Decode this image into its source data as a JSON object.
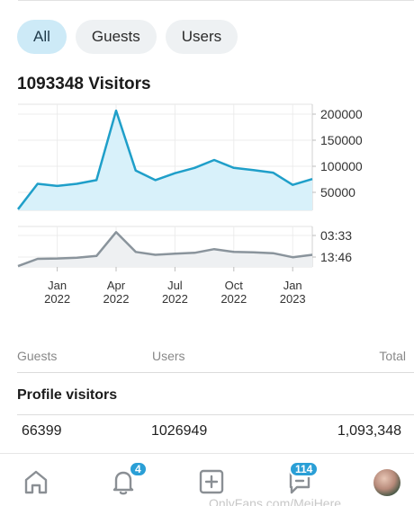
{
  "tabs": [
    {
      "label": "All",
      "active": true
    },
    {
      "label": "Guests",
      "active": false
    },
    {
      "label": "Users",
      "active": false
    }
  ],
  "title": "1093348 Visitors",
  "chart_data": [
    {
      "type": "area",
      "x": [
        "2021-11",
        "2021-12",
        "2022-01",
        "2022-02",
        "2022-03",
        "2022-04",
        "2022-05",
        "2022-06",
        "2022-07",
        "2022-08",
        "2022-09",
        "2022-10",
        "2022-11",
        "2022-12",
        "2023-01",
        "2023-02"
      ],
      "series": [
        {
          "values": [
            2000,
            50000,
            46000,
            50000,
            57000,
            188000,
            75000,
            57000,
            70000,
            80000,
            95000,
            80000,
            76000,
            71000,
            48000,
            59000
          ]
        }
      ],
      "y_ticks": [
        "200000",
        "150000",
        "100000",
        "50000"
      ],
      "ylim": [
        0,
        200000
      ],
      "color": "#1f9fc9",
      "fill": "#d8f1fa",
      "grid": true
    },
    {
      "type": "area",
      "x": [
        "2021-11",
        "2021-12",
        "2022-01",
        "2022-02",
        "2022-03",
        "2022-04",
        "2022-05",
        "2022-06",
        "2022-07",
        "2022-08",
        "2022-09",
        "2022-10",
        "2022-11",
        "2022-12",
        "2023-01",
        "2023-02"
      ],
      "series": [
        {
          "values": [
            2,
            20,
            21,
            23,
            27,
            86,
            37,
            30,
            33,
            35,
            44,
            37,
            36,
            34,
            24,
            30
          ]
        }
      ],
      "y_ticks": [
        "03:33",
        "13:46"
      ],
      "ylim": [
        0,
        100
      ],
      "color": "#8a949c",
      "fill": "#eef0f2",
      "grid": true
    }
  ],
  "x_axis_labels": [
    {
      "month": "Jan",
      "year": "2022",
      "at": "2022-01"
    },
    {
      "month": "Apr",
      "year": "2022",
      "at": "2022-04"
    },
    {
      "month": "Jul",
      "year": "2022",
      "at": "2022-07"
    },
    {
      "month": "Oct",
      "year": "2022",
      "at": "2022-10"
    },
    {
      "month": "Jan",
      "year": "2023",
      "at": "2023-01"
    }
  ],
  "stats": {
    "headers": {
      "guests": "Guests",
      "users": "Users",
      "total": "Total"
    },
    "section_title": "Profile visitors",
    "values": {
      "guests": "66399",
      "users": "1026949",
      "total": "1,093,348"
    }
  },
  "nav": {
    "items": [
      {
        "icon": "home-icon"
      },
      {
        "icon": "bell-icon",
        "badge": "4"
      },
      {
        "icon": "plus-square-icon"
      },
      {
        "icon": "messages-icon",
        "badge": "114"
      },
      {
        "icon": "avatar"
      }
    ]
  },
  "watermark": "OnlyFans.com/MeiHere"
}
